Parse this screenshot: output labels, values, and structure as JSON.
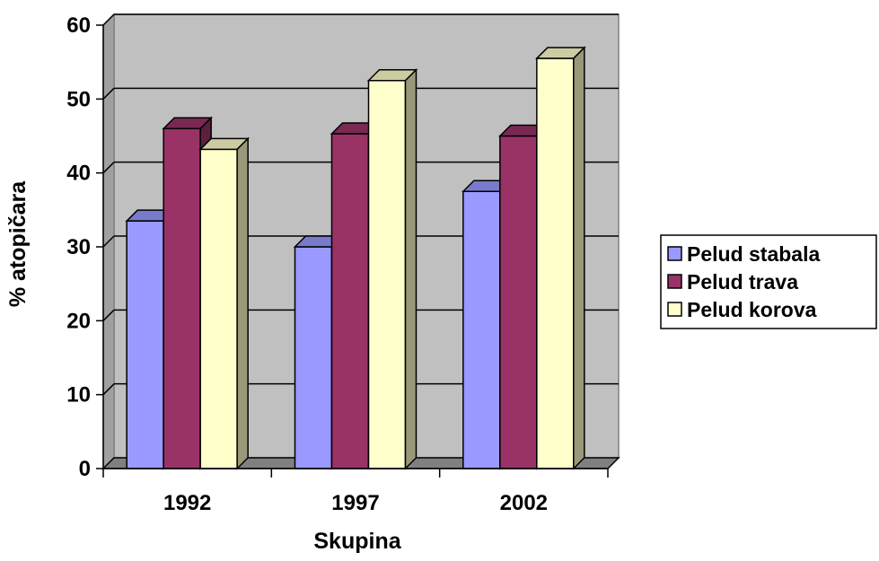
{
  "chart_data": {
    "type": "bar",
    "categories": [
      "1992",
      "1997",
      "2002"
    ],
    "series": [
      {
        "name": "Pelud stabala",
        "values": [
          33.5,
          30,
          37.5
        ],
        "color": "#9999ff",
        "side": "#5c5c99",
        "top": "#7a7acc"
      },
      {
        "name": "Pelud trava",
        "values": [
          46,
          45.3,
          45
        ],
        "color": "#993366",
        "side": "#5c1f3d",
        "top": "#7a2952"
      },
      {
        "name": "Pelud korova",
        "values": [
          43.2,
          52.5,
          55.5
        ],
        "color": "#ffffcc",
        "side": "#99997a",
        "top": "#ccccA3"
      }
    ],
    "xlabel": "Skupina",
    "ylabel": "% atopičara",
    "ylim": [
      0,
      60
    ],
    "yticks": [
      "0",
      "10",
      "20",
      "30",
      "40",
      "50",
      "60"
    ],
    "grid": true,
    "plot_background": "#c0c0c0",
    "legend_position": "right"
  }
}
